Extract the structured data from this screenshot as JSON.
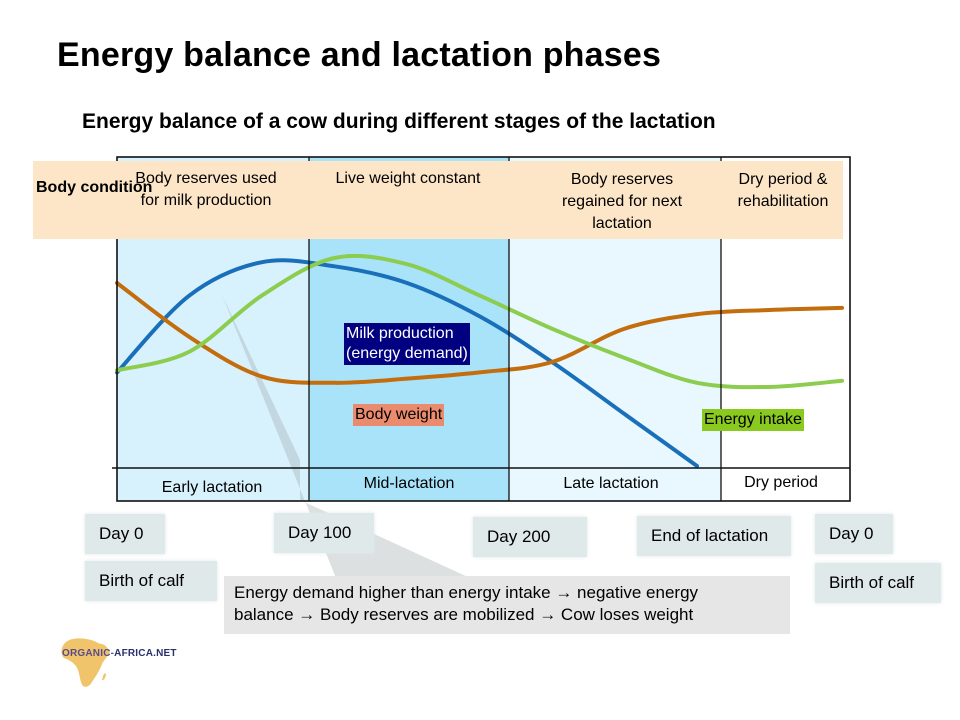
{
  "title": "Energy balance and lactation phases",
  "subtitle": "Energy balance of a cow during different stages of the lactation",
  "body_condition": {
    "title": "Body condition",
    "items": [
      "Body reserves used for milk production",
      "Live weight constant",
      "Body reserves regained for next lactation",
      "Dry period & rehabilitation"
    ]
  },
  "phases": [
    "Early lactation",
    "Mid-lactation",
    "Late lactation",
    "Dry period"
  ],
  "curve_labels": {
    "milk": "Milk production (energy demand)",
    "milk_line1": "Milk production",
    "milk_line2": "(energy demand)",
    "body_weight": "Body weight",
    "energy_intake": "Energy intake"
  },
  "milestones": {
    "day0_start": "Day 0",
    "birth_start": "Birth of calf",
    "day100": "Day 100",
    "day200": "Day 200",
    "end": "End of lactation",
    "day0_end": "Day 0",
    "birth_end": "Birth of calf"
  },
  "callout": "Energy demand higher than energy intake → negative energy balance → Body reserves are mobilized → Cow loses weight",
  "callout_line1": "Energy demand higher than energy intake → negative energy",
  "callout_line2": "balance → Body reserves are mobilized → Cow loses weight",
  "logo": {
    "text_left": "ORGANIC-",
    "text_right": "AFRICA.NET"
  },
  "colors": {
    "milk": "#1a6fba",
    "body_weight": "#c46d0c",
    "energy_intake": "#8ccc4e",
    "milk_label_bg": "#000080",
    "body_weight_label_bg": "#eb8b6e",
    "energy_label_bg": "#8ac91e",
    "condition_band": "#fde5c8"
  },
  "chart_data": {
    "type": "line",
    "title": "Energy balance of a cow during different stages of the lactation",
    "xlabel": "",
    "ylabel": "",
    "x": [
      0,
      0.1,
      0.2,
      0.3,
      0.4,
      0.5,
      0.6,
      0.7,
      0.8,
      0.9,
      1.0
    ],
    "x_note": "relative position in lactation cycle (Day 0 to next Day 0)",
    "series": [
      {
        "name": "Milk production (energy demand)",
        "values": [
          0.45,
          0.82,
          0.98,
          0.96,
          0.88,
          0.72,
          0.5,
          0.25,
          0.0,
          null,
          null
        ]
      },
      {
        "name": "Body weight",
        "values": [
          0.88,
          0.62,
          0.43,
          0.4,
          0.42,
          0.45,
          0.5,
          0.66,
          0.73,
          0.75,
          0.76
        ]
      },
      {
        "name": "Energy intake",
        "values": [
          0.46,
          0.55,
          0.82,
          1.0,
          0.97,
          0.82,
          0.66,
          0.52,
          0.4,
          0.38,
          0.41
        ]
      }
    ],
    "ylim": [
      0,
      1
    ],
    "grid": false
  }
}
